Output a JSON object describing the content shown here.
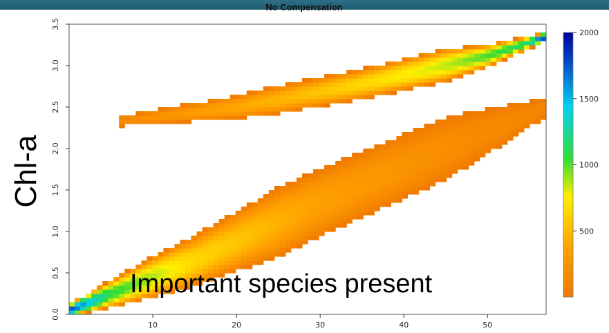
{
  "chart_data": {
    "type": "heatmap",
    "title": "No Compensation",
    "ylabel": "Chl-a",
    "annotation": "Important species present",
    "colorbar": {
      "min": 0,
      "max": 2000,
      "ticks": [
        "2000",
        "1500",
        "1000",
        "500"
      ],
      "tick_values": [
        2000,
        1500,
        1000,
        500
      ],
      "colormap": [
        "#f07800",
        "#ffa000",
        "#ffee00",
        "#33dd33",
        "#00d0f0",
        "#0040c0",
        "#0000a0"
      ]
    },
    "xlim": [
      0,
      57
    ],
    "ylim": [
      0,
      3.5
    ],
    "x_ticks": [
      10,
      20,
      30,
      40,
      50
    ],
    "y_ticks": [
      0.0,
      0.5,
      1.0,
      1.5,
      2.0,
      2.5,
      3.0,
      3.5
    ],
    "bands": [
      {
        "name": "upper",
        "x_range": [
          6,
          57
        ],
        "center": [
          [
            6,
            2.33
          ],
          [
            20,
            2.5
          ],
          [
            35,
            2.78
          ],
          [
            50,
            3.12
          ],
          [
            57,
            3.35
          ]
        ],
        "half_width": [
          [
            6,
            0.06
          ],
          [
            25,
            0.17
          ],
          [
            45,
            0.2
          ],
          [
            57,
            0.05
          ]
        ],
        "peak": [
          [
            6,
            180
          ],
          [
            30,
            550
          ],
          [
            45,
            850
          ],
          [
            55,
            1200
          ],
          [
            57,
            2000
          ]
        ]
      },
      {
        "name": "lower",
        "x_range": [
          0,
          57
        ],
        "center": [
          [
            0,
            0.05
          ],
          [
            15,
            0.65
          ],
          [
            30,
            1.35
          ],
          [
            45,
            2.0
          ],
          [
            57,
            2.5
          ]
        ],
        "half_width": [
          [
            0,
            0.08
          ],
          [
            10,
            0.25
          ],
          [
            25,
            0.42
          ],
          [
            45,
            0.38
          ],
          [
            57,
            0.12
          ]
        ],
        "peak": [
          [
            0,
            1800
          ],
          [
            5,
            1100
          ],
          [
            15,
            650
          ],
          [
            30,
            350
          ],
          [
            45,
            200
          ],
          [
            57,
            120
          ]
        ]
      }
    ]
  }
}
